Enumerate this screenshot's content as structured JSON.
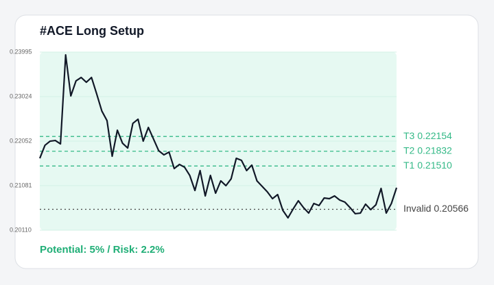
{
  "chart_data": {
    "type": "line",
    "title": "#ACE Long Setup",
    "annotation": "Potential: 5% / Risk: 2.2%",
    "ylim": [
      0.2011,
      0.23995
    ],
    "yticks": [
      {
        "value": 0.2011,
        "label": "0.20110"
      },
      0.21081,
      0.22052,
      0.23024,
      0.23995
    ],
    "grid": true,
    "line_color": "#111827",
    "plot_background": "#e6f9f2",
    "values": [
      0.21678,
      0.21962,
      0.22052,
      0.22067,
      0.21992,
      0.23934,
      0.23038,
      0.23366,
      0.23441,
      0.23337,
      0.23441,
      0.23083,
      0.22709,
      0.225,
      0.21723,
      0.22291,
      0.22007,
      0.21903,
      0.2244,
      0.2253,
      0.22052,
      0.22351,
      0.22097,
      0.21843,
      0.21753,
      0.21813,
      0.21454,
      0.21544,
      0.21484,
      0.21305,
      0.20976,
      0.2141,
      0.20857,
      0.21305,
      0.20917,
      0.21186,
      0.21081,
      0.2123,
      0.21678,
      0.21634,
      0.2141,
      0.21529,
      0.21186,
      0.21066,
      0.20947,
      0.20797,
      0.20887,
      0.20543,
      0.20379,
      0.20573,
      0.20752,
      0.20603,
      0.20483,
      0.20693,
      0.20648,
      0.20812,
      0.20797,
      0.20857,
      0.20767,
      0.20722,
      0.20603,
      0.20469,
      0.20483,
      0.20678,
      0.20558,
      0.20663,
      0.21021,
      0.20483,
      0.20693,
      0.21036
    ],
    "levels": [
      {
        "label": "T3 0.22154",
        "value": 0.22154,
        "color": "#34b987",
        "style": "dashed"
      },
      {
        "label": "T2 0.21832",
        "value": 0.21832,
        "color": "#34b987",
        "style": "dashed"
      },
      {
        "label": "T1 0.21510",
        "value": 0.2151,
        "color": "#34b987",
        "style": "dashed"
      },
      {
        "label": "Invalid 0.20566",
        "value": 0.20566,
        "color": "#444444",
        "style": "dotted"
      }
    ]
  }
}
